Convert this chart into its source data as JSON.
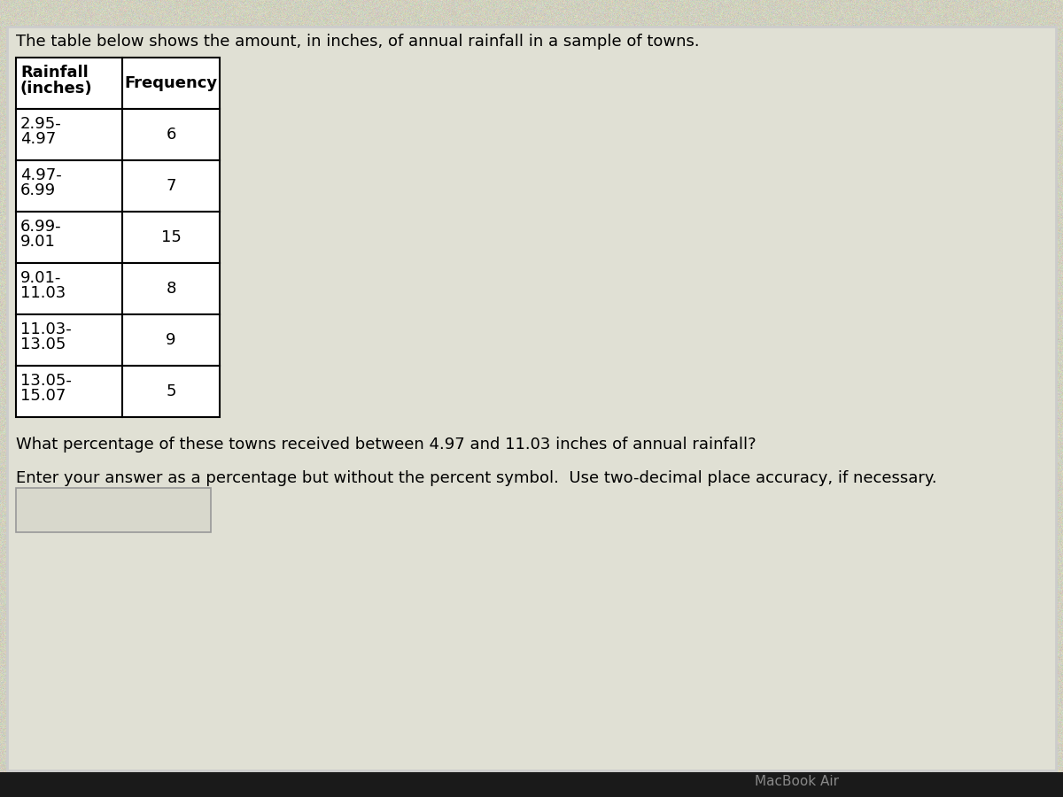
{
  "title": "The table below shows the amount, in inches, of annual rainfall in a sample of towns.",
  "col1_header_line1": "Rainfall",
  "col1_header_line2": "(inches)",
  "col2_header": "Frequency",
  "rows": [
    {
      "range_line1": "2.95-",
      "range_line2": "4.97",
      "freq": "6"
    },
    {
      "range_line1": "4.97-",
      "range_line2": "6.99",
      "freq": "7"
    },
    {
      "range_line1": "6.99-",
      "range_line2": "9.01",
      "freq": "15"
    },
    {
      "range_line1": "9.01-",
      "range_line2": "11.03",
      "freq": "8"
    },
    {
      "range_line1": "11.03-",
      "range_line2": "13.05",
      "freq": "9"
    },
    {
      "range_line1": "13.05-",
      "range_line2": "15.07",
      "freq": "5"
    }
  ],
  "question": "What percentage of these towns received between 4.97 and 11.03 inches of annual rainfall?",
  "instruction": "Enter your answer as a percentage but without the percent symbol.  Use two-decimal place accuracy, if necessary.",
  "outer_bg": "#b8b8a0",
  "inner_bg": "#d0d0be",
  "white_panel_bg": "#e8e8e0",
  "table_bg": "#ffffff",
  "border_color": "#000000",
  "text_color": "#000000",
  "bottom_bar_color": "#1a1a1a",
  "macbook_color": "#888888",
  "title_fontsize": 13,
  "table_fontsize": 13,
  "question_fontsize": 13,
  "instruction_fontsize": 13,
  "macbook_text": "MacBook Air"
}
